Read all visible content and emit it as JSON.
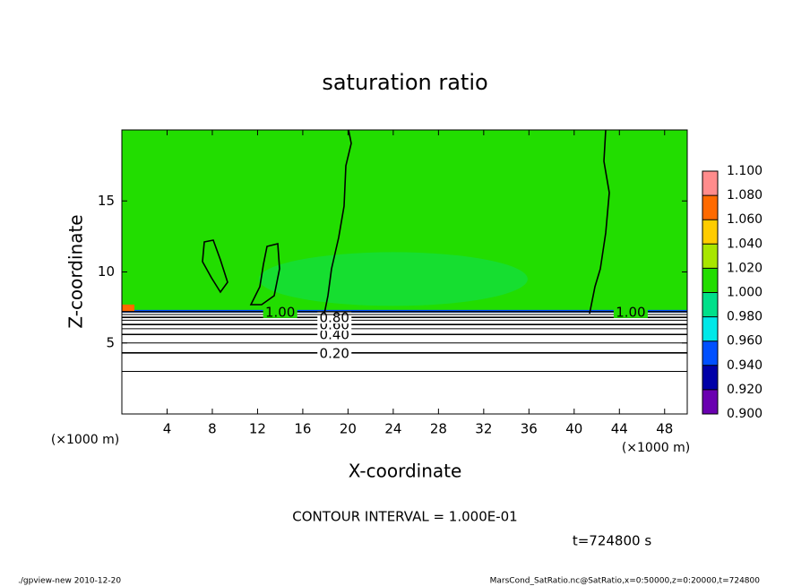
{
  "chart_data": {
    "type": "contour",
    "title": "saturation ratio",
    "xlabel": "X-coordinate",
    "ylabel": "Z-coordinate",
    "xunit": "(×1000 m)",
    "yunit": "(×1000 m)",
    "xlim": [
      0,
      50
    ],
    "ylim": [
      0,
      20
    ],
    "xticks": [
      4,
      8,
      12,
      16,
      20,
      24,
      28,
      32,
      36,
      40,
      44,
      48
    ],
    "yticks": [
      5,
      10,
      15
    ],
    "contours": [
      {
        "level": 0.1,
        "z": 3.0
      },
      {
        "level": 0.2,
        "label": "0.20",
        "z": 4.3
      },
      {
        "level": 0.3,
        "z": 5.0
      },
      {
        "level": 0.4,
        "label": "0.40",
        "z": 5.6
      },
      {
        "level": 0.5,
        "z": 6.0
      },
      {
        "level": 0.6,
        "label": "0.60",
        "z": 6.3
      },
      {
        "level": 0.7,
        "z": 6.6
      },
      {
        "level": 0.8,
        "label": "0.80",
        "z": 6.8
      },
      {
        "level": 0.9,
        "z": 7.0
      },
      {
        "level": 1.0,
        "label": "1.00",
        "z": 7.2
      }
    ],
    "colorbar": {
      "ticks": [
        {
          "value": 0.9,
          "label": "0.900"
        },
        {
          "value": 0.92,
          "label": "0.920"
        },
        {
          "value": 0.94,
          "label": "0.940"
        },
        {
          "value": 0.96,
          "label": "0.960"
        },
        {
          "value": 0.98,
          "label": "0.980"
        },
        {
          "value": 1.0,
          "label": "1.000"
        },
        {
          "value": 1.02,
          "label": "1.020"
        },
        {
          "value": 1.04,
          "label": "1.040"
        },
        {
          "value": 1.06,
          "label": "1.060"
        },
        {
          "value": 1.08,
          "label": "1.080"
        },
        {
          "value": 1.1,
          "label": "1.100"
        }
      ],
      "colors": [
        "#6a00b0",
        "#0000a8",
        "#0050ff",
        "#00e8e8",
        "#00e08a",
        "#22dd00",
        "#a8e600",
        "#ffcc00",
        "#ff6a00",
        "#ff8c8c"
      ]
    },
    "contour_interval": "CONTOUR INTERVAL = 1.000E-01",
    "time": "t=724800 s",
    "footer_left": "./gpview-new  2010-12-20",
    "footer_right": "MarsCond_SatRatio.nc@SatRatio,x=0:50000,z=0:20000,t=724800"
  }
}
